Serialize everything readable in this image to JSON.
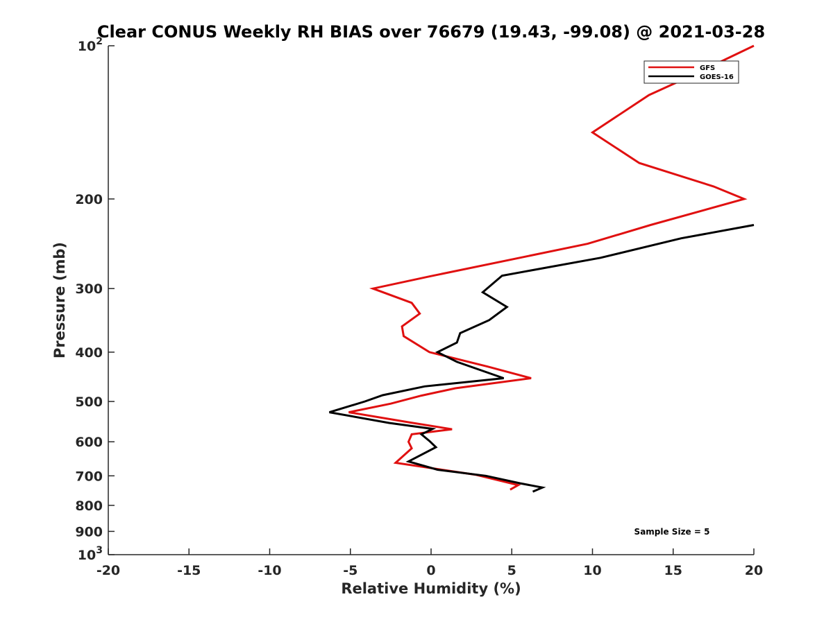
{
  "chart_data": {
    "type": "line",
    "title": "Clear CONUS Weekly RH BIAS over 76679 (19.43, -99.08) @ 2021-03-28",
    "xlabel": "Relative Humidity (%)",
    "ylabel": "Pressure (mb)",
    "xlim": [
      -20,
      20
    ],
    "ylim": [
      100,
      1000
    ],
    "y_scale": "log",
    "y_reversed": true,
    "grid": false,
    "legend_position": "top-right",
    "x_ticks": [
      -20,
      -15,
      -10,
      -5,
      0,
      5,
      10,
      15,
      20
    ],
    "x_tick_labels": [
      "-20",
      "-15",
      "-10",
      "-5",
      "0",
      "5",
      "10",
      "15",
      "20"
    ],
    "y_ticks": [
      100,
      200,
      300,
      400,
      500,
      600,
      700,
      800,
      900,
      1000
    ],
    "y_tick_labels": [
      {
        "base": "10",
        "exp": "2"
      },
      {
        "base": "200",
        "exp": ""
      },
      {
        "base": "300",
        "exp": ""
      },
      {
        "base": "400",
        "exp": ""
      },
      {
        "base": "500",
        "exp": ""
      },
      {
        "base": "600",
        "exp": ""
      },
      {
        "base": "700",
        "exp": ""
      },
      {
        "base": "800",
        "exp": ""
      },
      {
        "base": "900",
        "exp": ""
      },
      {
        "base": "10",
        "exp": "3"
      }
    ],
    "annotation": "Sample Size = 5",
    "series": [
      {
        "name": "GFS",
        "color": "#e01010",
        "points": [
          [
            20.0,
            100
          ],
          [
            16.0,
            115
          ],
          [
            13.5,
            125
          ],
          [
            10.0,
            148
          ],
          [
            12.9,
            170
          ],
          [
            17.5,
            189
          ],
          [
            19.4,
            200
          ],
          [
            13.6,
            225
          ],
          [
            9.7,
            245
          ],
          [
            -0.1,
            284
          ],
          [
            -3.6,
            300
          ],
          [
            -1.2,
            320
          ],
          [
            -0.7,
            336
          ],
          [
            -1.8,
            356
          ],
          [
            -1.7,
            372
          ],
          [
            -0.1,
            400
          ],
          [
            3.5,
            427
          ],
          [
            6.2,
            450
          ],
          [
            1.5,
            471
          ],
          [
            -0.6,
            487
          ],
          [
            -2.5,
            505
          ],
          [
            -5.1,
            525
          ],
          [
            -1.3,
            550
          ],
          [
            1.3,
            567
          ],
          [
            -1.2,
            580
          ],
          [
            -1.4,
            600
          ],
          [
            -1.2,
            618
          ],
          [
            -2.2,
            660
          ],
          [
            2.8,
            697
          ],
          [
            5.4,
            730
          ],
          [
            4.9,
            745
          ]
        ]
      },
      {
        "name": "GOES-16",
        "color": "#000000",
        "points": [
          [
            20.0,
            225
          ],
          [
            15.5,
            239
          ],
          [
            10.5,
            261
          ],
          [
            4.4,
            283
          ],
          [
            3.2,
            305
          ],
          [
            4.7,
            326
          ],
          [
            3.6,
            346
          ],
          [
            1.8,
            367
          ],
          [
            1.6,
            383
          ],
          [
            0.4,
            400
          ],
          [
            1.6,
            418
          ],
          [
            4.5,
            450
          ],
          [
            -0.4,
            467
          ],
          [
            -3.0,
            486
          ],
          [
            -4.1,
            500
          ],
          [
            -6.3,
            525
          ],
          [
            -2.6,
            551
          ],
          [
            0.1,
            566
          ],
          [
            -0.6,
            580
          ],
          [
            -0.1,
            598
          ],
          [
            0.3,
            615
          ],
          [
            -1.4,
            656
          ],
          [
            0.4,
            681
          ],
          [
            3.4,
            700
          ],
          [
            5.5,
            724
          ],
          [
            6.9,
            738
          ],
          [
            6.3,
            752
          ]
        ]
      }
    ]
  }
}
